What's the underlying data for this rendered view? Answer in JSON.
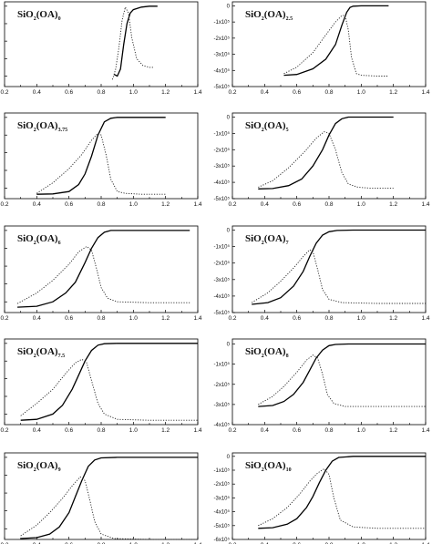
{
  "figure": {
    "panel_count": 10
  },
  "chart_data": [
    {
      "type": "line",
      "title_base": "SiO",
      "title_sub1": "2",
      "title_mid": "(OA)",
      "title_sub2": "0",
      "xlim": [
        0.2,
        1.4
      ],
      "xticks": [
        "0.2",
        "0.4",
        "0.6",
        "0.8",
        "1.0",
        "1.2",
        "1.4"
      ],
      "series": [
        {
          "style": "solid",
          "x": [
            0.88,
            0.9,
            0.92,
            0.94,
            0.96,
            0.98,
            1.0,
            1.05,
            1.1,
            1.15
          ],
          "y": [
            -3.9,
            -4.0,
            -3.6,
            -2.2,
            -1.0,
            -0.4,
            -0.2,
            -0.05,
            0,
            0
          ]
        },
        {
          "style": "dotted",
          "x": [
            0.87,
            0.89,
            0.91,
            0.93,
            0.95,
            0.97,
            0.99,
            1.02,
            1.06,
            1.1,
            1.13
          ],
          "y": [
            -4.2,
            -3.6,
            -2.4,
            -0.8,
            -0.05,
            -0.4,
            -1.8,
            -3.0,
            -3.4,
            -3.5,
            -3.5
          ]
        }
      ]
    },
    {
      "type": "line",
      "title_base": "SiO",
      "title_sub1": "2",
      "title_mid": "(OA)",
      "title_sub2": "2.5",
      "xlim": [
        0.2,
        1.4
      ],
      "xticks": [
        "0.2",
        "0.4",
        "0.6",
        "0.8",
        "1.0",
        "1.2",
        "1.4"
      ],
      "ylim": [
        -5,
        0
      ],
      "yticks": [
        "0",
        "-1x10⁵",
        "-2x10⁵",
        "-3x10⁵",
        "-4x10⁵",
        "-5x10⁵"
      ],
      "series": [
        {
          "style": "solid",
          "x": [
            0.52,
            0.6,
            0.7,
            0.78,
            0.84,
            0.88,
            0.91,
            0.93,
            0.95,
            1.0,
            1.1,
            1.17
          ],
          "y": [
            -4.3,
            -4.25,
            -3.9,
            -3.3,
            -2.4,
            -1.2,
            -0.4,
            -0.1,
            -0.02,
            0,
            0,
            0
          ]
        },
        {
          "style": "dotted",
          "x": [
            0.52,
            0.6,
            0.7,
            0.78,
            0.84,
            0.88,
            0.9,
            0.92,
            0.94,
            0.97,
            1.0,
            1.1,
            1.17
          ],
          "y": [
            -4.2,
            -3.8,
            -2.9,
            -1.8,
            -1.0,
            -0.6,
            -0.6,
            -1.5,
            -3.2,
            -4.2,
            -4.3,
            -4.35,
            -4.35
          ]
        }
      ]
    },
    {
      "type": "line",
      "title_base": "SiO",
      "title_sub1": "2",
      "title_mid": "(OA)",
      "title_sub2": "3.75",
      "xlim": [
        0.2,
        1.4
      ],
      "xticks": [
        "0.2",
        "0.4",
        "0.6",
        "0.8",
        "1.0",
        "1.2",
        "1.4"
      ],
      "series": [
        {
          "style": "solid",
          "x": [
            0.4,
            0.5,
            0.6,
            0.66,
            0.7,
            0.74,
            0.78,
            0.82,
            0.86,
            0.9,
            1.0,
            1.1,
            1.2
          ],
          "y": [
            -4.35,
            -4.33,
            -4.2,
            -3.8,
            -3.2,
            -2.2,
            -1.0,
            -0.25,
            -0.05,
            0,
            0,
            0,
            0
          ]
        },
        {
          "style": "dotted",
          "x": [
            0.4,
            0.5,
            0.6,
            0.68,
            0.74,
            0.78,
            0.8,
            0.83,
            0.86,
            0.9,
            0.95,
            1.05,
            1.2
          ],
          "y": [
            -4.3,
            -3.7,
            -2.9,
            -2.1,
            -1.3,
            -0.9,
            -1.0,
            -2.1,
            -3.5,
            -4.2,
            -4.3,
            -4.35,
            -4.35
          ]
        }
      ]
    },
    {
      "type": "line",
      "title_base": "SiO",
      "title_sub1": "2",
      "title_mid": "(OA)",
      "title_sub2": "5",
      "xlim": [
        0.2,
        1.4
      ],
      "xticks": [
        "0.2",
        "0.4",
        "0.6",
        "0.8",
        "1.0",
        "1.2",
        "1.4"
      ],
      "ylim": [
        -5,
        0
      ],
      "yticks": [
        "0",
        "-1x10⁵",
        "-2x10⁵",
        "-3x10⁵",
        "-4x10⁵",
        "-5x10⁵"
      ],
      "series": [
        {
          "style": "solid",
          "x": [
            0.36,
            0.45,
            0.55,
            0.63,
            0.7,
            0.76,
            0.8,
            0.84,
            0.88,
            0.92,
            1.0,
            1.1,
            1.2
          ],
          "y": [
            -4.4,
            -4.38,
            -4.2,
            -3.8,
            -3.0,
            -2.0,
            -1.1,
            -0.4,
            -0.1,
            0,
            0,
            0,
            0
          ]
        },
        {
          "style": "dotted",
          "x": [
            0.36,
            0.45,
            0.55,
            0.65,
            0.72,
            0.77,
            0.8,
            0.84,
            0.88,
            0.92,
            0.98,
            1.05,
            1.2
          ],
          "y": [
            -4.3,
            -3.9,
            -3.1,
            -2.1,
            -1.3,
            -0.9,
            -1.0,
            -2.0,
            -3.4,
            -4.1,
            -4.3,
            -4.35,
            -4.35
          ]
        }
      ]
    },
    {
      "type": "line",
      "title_base": "SiO",
      "title_sub1": "2",
      "title_mid": "(OA)",
      "title_sub2": "6",
      "xlim": [
        0.2,
        1.4
      ],
      "xticks": [
        "0.2",
        "0.4",
        "0.6",
        "0.8",
        "1.0",
        "1.2",
        "1.4"
      ],
      "series": [
        {
          "style": "solid",
          "x": [
            0.28,
            0.4,
            0.5,
            0.58,
            0.64,
            0.7,
            0.74,
            0.78,
            0.82,
            0.86,
            0.95,
            1.1,
            1.35
          ],
          "y": [
            -4.3,
            -4.25,
            -4.0,
            -3.5,
            -2.9,
            -1.8,
            -1.0,
            -0.4,
            -0.1,
            0,
            0,
            0,
            0
          ]
        },
        {
          "style": "dotted",
          "x": [
            0.28,
            0.4,
            0.5,
            0.6,
            0.66,
            0.71,
            0.74,
            0.77,
            0.8,
            0.84,
            0.9,
            1.1,
            1.35
          ],
          "y": [
            -4.1,
            -3.5,
            -2.8,
            -1.9,
            -1.2,
            -0.9,
            -1.1,
            -2.1,
            -3.2,
            -3.8,
            -4.0,
            -4.05,
            -4.05
          ]
        }
      ]
    },
    {
      "type": "line",
      "title_base": "SiO",
      "title_sub1": "2",
      "title_mid": "(OA)",
      "title_sub2": "7",
      "xlim": [
        0.2,
        1.4
      ],
      "xticks": [
        "0.2",
        "0.4",
        "0.6",
        "0.8",
        "1.0",
        "1.2",
        "1.4"
      ],
      "ylim": [
        -5,
        0
      ],
      "yticks": [
        "0",
        "-1x10⁵",
        "-2x10⁵",
        "-3x10⁵",
        "-4x10⁵",
        "-5x10⁵"
      ],
      "series": [
        {
          "style": "solid",
          "x": [
            0.32,
            0.42,
            0.5,
            0.58,
            0.64,
            0.68,
            0.72,
            0.76,
            0.8,
            0.85,
            0.95,
            1.1,
            1.4
          ],
          "y": [
            -4.5,
            -4.4,
            -4.1,
            -3.4,
            -2.5,
            -1.6,
            -0.8,
            -0.3,
            -0.1,
            -0.02,
            0,
            0,
            0
          ]
        },
        {
          "style": "dotted",
          "x": [
            0.32,
            0.42,
            0.5,
            0.58,
            0.64,
            0.68,
            0.7,
            0.73,
            0.76,
            0.8,
            0.88,
            1.1,
            1.4
          ],
          "y": [
            -4.4,
            -3.8,
            -3.1,
            -2.3,
            -1.6,
            -1.2,
            -1.3,
            -2.4,
            -3.6,
            -4.2,
            -4.4,
            -4.45,
            -4.45
          ]
        }
      ]
    },
    {
      "type": "line",
      "title_base": "SiO",
      "title_sub1": "2",
      "title_mid": "(OA)",
      "title_sub2": "7.5",
      "xlim": [
        0.2,
        1.4
      ],
      "xticks": [
        "0.2",
        "0.4",
        "0.6",
        "0.8",
        "1.0",
        "1.2",
        "1.4"
      ],
      "series": [
        {
          "style": "solid",
          "x": [
            0.3,
            0.4,
            0.5,
            0.56,
            0.62,
            0.66,
            0.7,
            0.74,
            0.78,
            0.82,
            0.9,
            1.1,
            1.4
          ],
          "y": [
            -4.35,
            -4.3,
            -4.0,
            -3.5,
            -2.6,
            -1.8,
            -1.0,
            -0.4,
            -0.1,
            -0.02,
            0,
            0,
            0
          ]
        },
        {
          "style": "dotted",
          "x": [
            0.3,
            0.4,
            0.5,
            0.58,
            0.64,
            0.68,
            0.71,
            0.74,
            0.78,
            0.82,
            0.9,
            1.1,
            1.4
          ],
          "y": [
            -4.1,
            -3.4,
            -2.6,
            -1.7,
            -1.1,
            -0.9,
            -1.1,
            -2.1,
            -3.4,
            -4.0,
            -4.3,
            -4.35,
            -4.35
          ]
        }
      ]
    },
    {
      "type": "line",
      "title_base": "SiO",
      "title_sub1": "2",
      "title_mid": "(OA)",
      "title_sub2": "8",
      "xlim": [
        0.2,
        1.4
      ],
      "xticks": [
        "0.2",
        "0.4",
        "0.6",
        "0.8",
        "1.0",
        "1.2",
        "1.4"
      ],
      "ylim": [
        -4,
        0
      ],
      "yticks": [
        "0",
        "-1x10⁵",
        "-2x10⁵",
        "-3x10⁵",
        "-4x10⁵"
      ],
      "series": [
        {
          "style": "solid",
          "x": [
            0.36,
            0.45,
            0.52,
            0.58,
            0.64,
            0.68,
            0.72,
            0.76,
            0.8,
            0.84,
            0.92,
            1.1,
            1.4
          ],
          "y": [
            -3.1,
            -3.05,
            -2.85,
            -2.5,
            -1.9,
            -1.3,
            -0.7,
            -0.3,
            -0.08,
            -0.02,
            0,
            0,
            0
          ]
        },
        {
          "style": "dotted",
          "x": [
            0.36,
            0.45,
            0.52,
            0.6,
            0.66,
            0.7,
            0.73,
            0.76,
            0.79,
            0.83,
            0.9,
            1.1,
            1.4
          ],
          "y": [
            -3.0,
            -2.6,
            -2.1,
            -1.4,
            -0.8,
            -0.55,
            -0.7,
            -1.5,
            -2.5,
            -2.95,
            -3.1,
            -3.1,
            -3.1
          ]
        }
      ]
    },
    {
      "type": "line",
      "title_base": "SiO",
      "title_sub1": "2",
      "title_mid": "(OA)",
      "title_sub2": "9",
      "xlim": [
        0.2,
        1.4
      ],
      "xticks": [
        "0.2",
        "0.4",
        "0.6",
        "0.8",
        "1.0",
        "1.2",
        "1.4"
      ],
      "series": [
        {
          "style": "solid",
          "x": [
            0.3,
            0.4,
            0.48,
            0.54,
            0.6,
            0.64,
            0.68,
            0.72,
            0.76,
            0.8,
            0.9,
            1.1,
            1.4
          ],
          "y": [
            -4.55,
            -4.5,
            -4.3,
            -3.9,
            -3.1,
            -2.2,
            -1.3,
            -0.5,
            -0.15,
            -0.03,
            0,
            0,
            0
          ]
        },
        {
          "style": "dotted",
          "x": [
            0.3,
            0.4,
            0.48,
            0.56,
            0.62,
            0.67,
            0.7,
            0.73,
            0.76,
            0.8,
            0.88,
            1.1,
            1.4
          ],
          "y": [
            -4.4,
            -3.8,
            -3.1,
            -2.3,
            -1.6,
            -1.1,
            -1.3,
            -2.4,
            -3.6,
            -4.3,
            -4.55,
            -4.6,
            -4.6
          ]
        }
      ]
    },
    {
      "type": "line",
      "title_base": "SiO",
      "title_sub1": "2",
      "title_mid": "(OA)",
      "title_sub2": "10",
      "xlim": [
        0.2,
        1.4
      ],
      "xticks": [
        "0.2",
        "0.4",
        "0.6",
        "0.8",
        "1.0",
        "1.2",
        "1.4"
      ],
      "ylim": [
        -6,
        0
      ],
      "yticks": [
        "0",
        "-1x10⁵",
        "-2x10⁵",
        "-3x10⁵",
        "-4x10⁵",
        "-5x10⁵",
        "-6x10⁵"
      ],
      "series": [
        {
          "style": "solid",
          "x": [
            0.36,
            0.45,
            0.54,
            0.6,
            0.66,
            0.7,
            0.74,
            0.78,
            0.82,
            0.86,
            0.95,
            1.1,
            1.4
          ],
          "y": [
            -5.2,
            -5.15,
            -4.9,
            -4.5,
            -3.7,
            -2.9,
            -1.9,
            -1.0,
            -0.35,
            -0.08,
            0,
            0,
            0
          ]
        },
        {
          "style": "dotted",
          "x": [
            0.36,
            0.45,
            0.54,
            0.62,
            0.68,
            0.73,
            0.77,
            0.8,
            0.83,
            0.87,
            0.95,
            1.1,
            1.4
          ],
          "y": [
            -5.0,
            -4.5,
            -3.7,
            -2.7,
            -1.8,
            -1.2,
            -0.9,
            -1.3,
            -3.0,
            -4.6,
            -5.1,
            -5.2,
            -5.2
          ]
        }
      ]
    }
  ]
}
